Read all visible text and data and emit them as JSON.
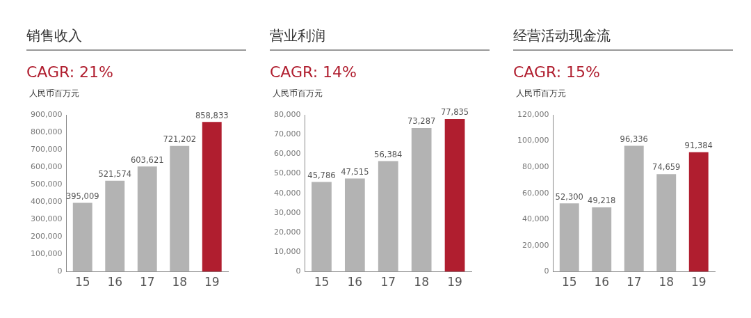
{
  "chart_data": [
    {
      "type": "bar",
      "title": "销售收入",
      "subtitle": "CAGR: 21%",
      "ylabel": "人民币百万元",
      "categories": [
        "15",
        "16",
        "17",
        "18",
        "19"
      ],
      "values": [
        395009,
        521574,
        603621,
        721202,
        858833
      ],
      "colors": [
        "#b3b3b3",
        "#b3b3b3",
        "#b3b3b3",
        "#b3b3b3",
        "#b01e2f"
      ],
      "value_labels": [
        "395,009",
        "521,574",
        "603,621",
        "721,202",
        "858,833"
      ],
      "ylim": [
        0,
        900000
      ],
      "yticks": [
        {
          "value": 0,
          "label": "0"
        },
        {
          "value": 100000,
          "label": "100,000"
        },
        {
          "value": 200000,
          "label": "200,000"
        },
        {
          "value": 300000,
          "label": "300,000"
        },
        {
          "value": 400000,
          "label": "400,000"
        },
        {
          "value": 500000,
          "label": "500,000"
        },
        {
          "value": 600000,
          "label": "600,000"
        },
        {
          "value": 700000,
          "label": "700,000"
        },
        {
          "value": 800000,
          "label": "800,000"
        },
        {
          "value": 900000,
          "label": "900,000"
        }
      ],
      "grid": false,
      "legend": false
    },
    {
      "type": "bar",
      "title": "营业利润",
      "subtitle": "CAGR: 14%",
      "ylabel": "人民币百万元",
      "categories": [
        "15",
        "16",
        "17",
        "18",
        "19"
      ],
      "values": [
        45786,
        47515,
        56384,
        73287,
        77835
      ],
      "colors": [
        "#b3b3b3",
        "#b3b3b3",
        "#b3b3b3",
        "#b3b3b3",
        "#b01e2f"
      ],
      "value_labels": [
        "45,786",
        "47,515",
        "56,384",
        "73,287",
        "77,835"
      ],
      "ylim": [
        0,
        80000
      ],
      "yticks": [
        {
          "value": 0,
          "label": "0"
        },
        {
          "value": 10000,
          "label": "10,000"
        },
        {
          "value": 20000,
          "label": "20,000"
        },
        {
          "value": 30000,
          "label": "30,000"
        },
        {
          "value": 40000,
          "label": "40,000"
        },
        {
          "value": 50000,
          "label": "50,000"
        },
        {
          "value": 60000,
          "label": "60,000"
        },
        {
          "value": 70000,
          "label": "70,000"
        },
        {
          "value": 80000,
          "label": "80,000"
        }
      ],
      "grid": false,
      "legend": false
    },
    {
      "type": "bar",
      "title": "经营活动现金流",
      "subtitle": "CAGR: 15%",
      "ylabel": "人民币百万元",
      "categories": [
        "15",
        "16",
        "17",
        "18",
        "19"
      ],
      "values": [
        52300,
        49218,
        96336,
        74659,
        91384
      ],
      "colors": [
        "#b3b3b3",
        "#b3b3b3",
        "#b3b3b3",
        "#b3b3b3",
        "#b01e2f"
      ],
      "value_labels": [
        "52,300",
        "49,218",
        "96,336",
        "74,659",
        "91,384"
      ],
      "ylim": [
        0,
        120000
      ],
      "yticks": [
        {
          "value": 0,
          "label": "0"
        },
        {
          "value": 20000,
          "label": "20,000"
        },
        {
          "value": 40000,
          "label": "40,000"
        },
        {
          "value": 60000,
          "label": "60,000"
        },
        {
          "value": 80000,
          "label": "80,000"
        },
        {
          "value": 100000,
          "label": "100,000"
        },
        {
          "value": 120000,
          "label": "120,000"
        }
      ],
      "grid": false,
      "legend": false
    }
  ]
}
